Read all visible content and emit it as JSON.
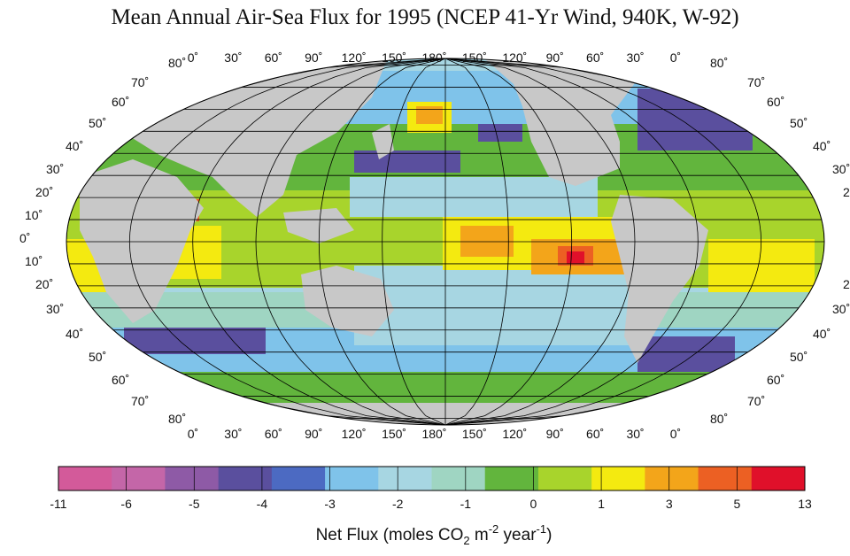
{
  "title": "Mean Annual Air-Sea Flux for 1995 (NCEP 41-Yr Wind, 940K, W-92)",
  "map": {
    "projection": "Robinson-like, Pacific-centered",
    "land_color": "#c8c8c8",
    "grid_color": "#000000",
    "top_lon_labels": [
      "0˚",
      "30˚",
      "60˚",
      "90˚",
      "120˚",
      "150˚",
      "180˚",
      "150˚",
      "120˚",
      "90˚",
      "60˚",
      "30˚",
      "0˚"
    ],
    "bottom_lon_labels": [
      "0˚",
      "30˚",
      "60˚",
      "90˚",
      "120˚",
      "150˚",
      "180˚",
      "150˚",
      "120˚",
      "90˚",
      "60˚",
      "30˚",
      "0˚"
    ],
    "lat_labels": [
      "80˚",
      "70˚",
      "60˚",
      "50˚",
      "40˚",
      "30˚",
      "20˚",
      "10˚",
      "0˚",
      "10˚",
      "20˚",
      "30˚",
      "40˚",
      "50˚",
      "60˚",
      "70˚",
      "80˚"
    ]
  },
  "colorbar": {
    "tick_labels": [
      "-11",
      "-6",
      "-5",
      "-4",
      "-3",
      "-2",
      "-1",
      "0",
      "1",
      "3",
      "5",
      "13"
    ],
    "colors": [
      "#d35a9a",
      "#c466a8",
      "#8e5aa6",
      "#5a4f9e",
      "#4c6ac2",
      "#7fc3ea",
      "#a7d6e2",
      "#9fd5c2",
      "#62b53d",
      "#a8d42c",
      "#f4ea10",
      "#f3a51a",
      "#ec6023",
      "#e0102a"
    ],
    "unit_text_main": "Net Flux (moles CO",
    "unit_sub": "2",
    "unit_text_mid": " m",
    "unit_sup1": "-2",
    "unit_text_mid2": " year",
    "unit_sup2": "-1",
    "unit_text_end": ")"
  }
}
